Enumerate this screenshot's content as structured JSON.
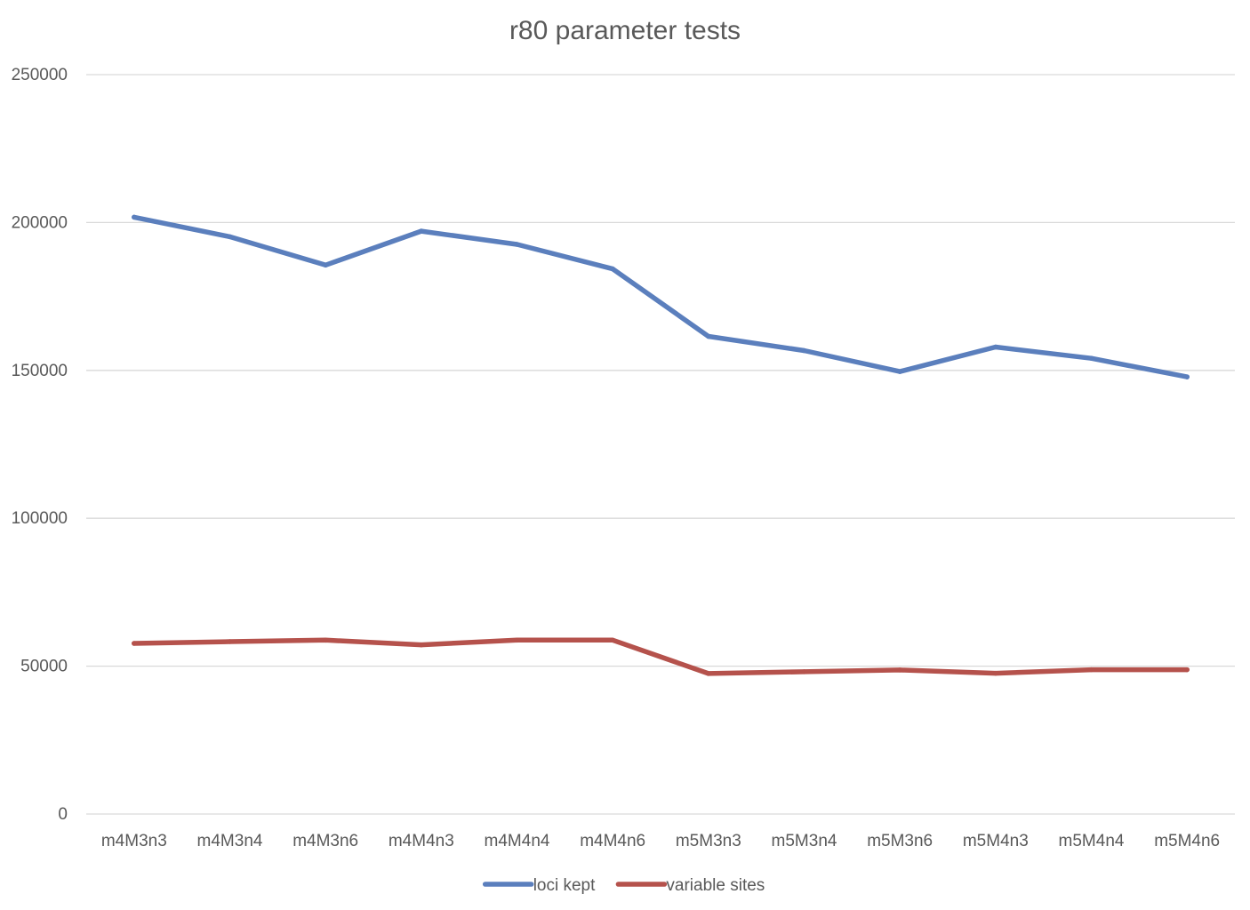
{
  "chart_data": {
    "type": "line",
    "title": "r80 parameter tests",
    "xlabel": "",
    "ylabel": "",
    "categories": [
      "m4M3n3",
      "m4M3n4",
      "m4M3n6",
      "m4M4n3",
      "m4M4n4",
      "m4M4n6",
      "m5M3n3",
      "m5M3n4",
      "m5M3n6",
      "m5M4n3",
      "m5M4n4",
      "m5M4n6"
    ],
    "ylim": [
      0,
      250000
    ],
    "yticks": [
      "0",
      "50000",
      "100000",
      "150000",
      "200000",
      "250000"
    ],
    "grid": true,
    "legend_position": "bottom",
    "series": [
      {
        "name": "loci kept",
        "color": "#5b7fbd",
        "values": [
          201800,
          195200,
          185600,
          197100,
          192600,
          184300,
          161500,
          156700,
          149600,
          157900,
          154100,
          147800
        ]
      },
      {
        "name": "variable sites",
        "color": "#b5524c",
        "values": [
          57700,
          58300,
          58800,
          57200,
          58800,
          58800,
          47500,
          48100,
          48700,
          47600,
          48800,
          48800
        ]
      }
    ]
  }
}
